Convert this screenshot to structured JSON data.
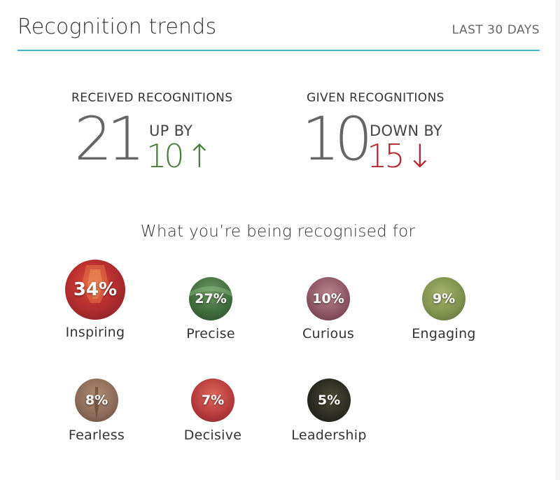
{
  "header": {
    "title": "Recognition trends",
    "period": "LAST 30 DAYS"
  },
  "received": {
    "label": "RECEIVED RECOGNITIONS",
    "count": "21",
    "change_label": "UP BY",
    "change_value": "10",
    "arrow": "↑"
  },
  "given": {
    "label": "GIVEN RECOGNITIONS",
    "count": "10",
    "change_label": "DOWN BY",
    "change_value": "15",
    "arrow": "↓"
  },
  "values_section": {
    "title": "What you’re being recognised for",
    "items": [
      {
        "name": "Inspiring",
        "percent": "34%",
        "color": "#a62a35"
      },
      {
        "name": "Precise",
        "percent": "27%",
        "color": "#3f6b3c"
      },
      {
        "name": "Curious",
        "percent": "10%",
        "color": "#8c5463"
      },
      {
        "name": "Engaging",
        "percent": "9%",
        "color": "#7c8f4c"
      },
      {
        "name": "Fearless",
        "percent": "8%",
        "color": "#8a6a58"
      },
      {
        "name": "Decisive",
        "percent": "7%",
        "color": "#b5393b"
      },
      {
        "name": "Leadership",
        "percent": "5%",
        "color": "#2b2a22"
      }
    ]
  },
  "colors": {
    "accent_line": "#4ab3d9",
    "up": "#4a7d3b",
    "down": "#b4262f",
    "big_number": "#666666"
  }
}
